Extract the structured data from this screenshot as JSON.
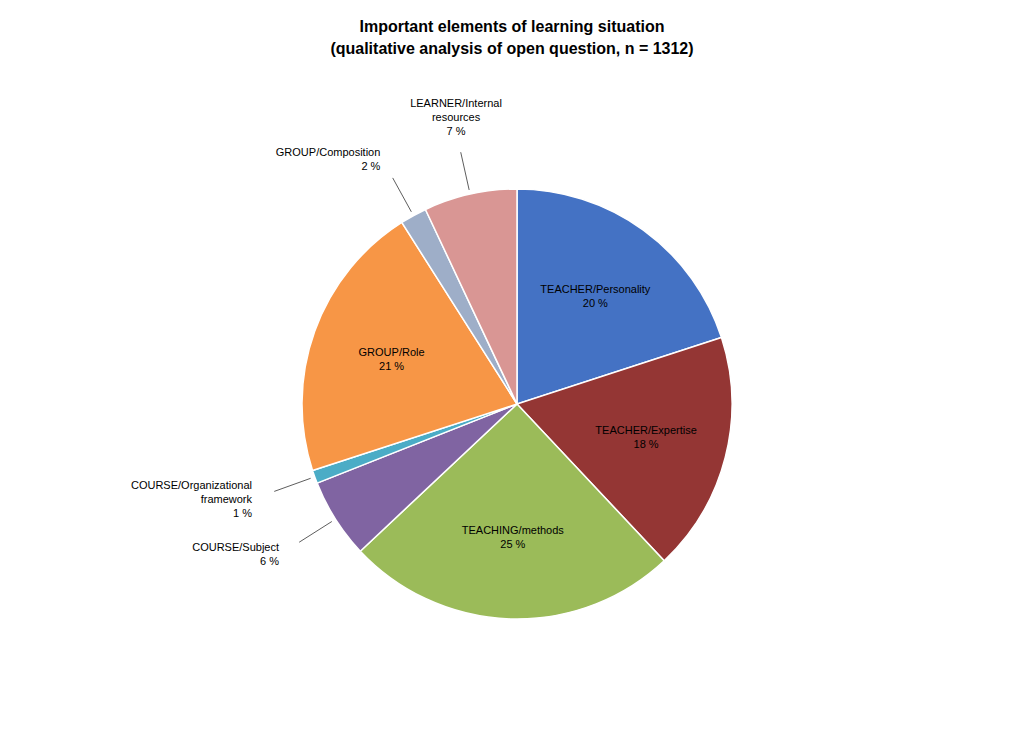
{
  "chart_data": {
    "type": "pie",
    "title": "Important elements of learning situation\n(qualitative analysis of open question, n = 1312)",
    "categories": [
      "TEACHER/Personality",
      "TEACHER/Expertise",
      "TEACHING/methods",
      "COURSE/Subject",
      "COURSE/Organizational\nframework",
      "GROUP/Role",
      "GROUP/Composition",
      "LEARNER/Internal\nresources"
    ],
    "values": [
      20,
      18,
      25,
      6,
      1,
      21,
      2,
      7
    ],
    "value_labels": [
      "20 %",
      "18 %",
      "25 %",
      "6 %",
      "1 %",
      "21 %",
      "2 %",
      "7 %"
    ],
    "colors": [
      "#4472C4",
      "#943634",
      "#9BBB59",
      "#8064A2",
      "#4BACC6",
      "#F79646",
      "#9EAEC8",
      "#D99694"
    ],
    "data_labels": true
  }
}
